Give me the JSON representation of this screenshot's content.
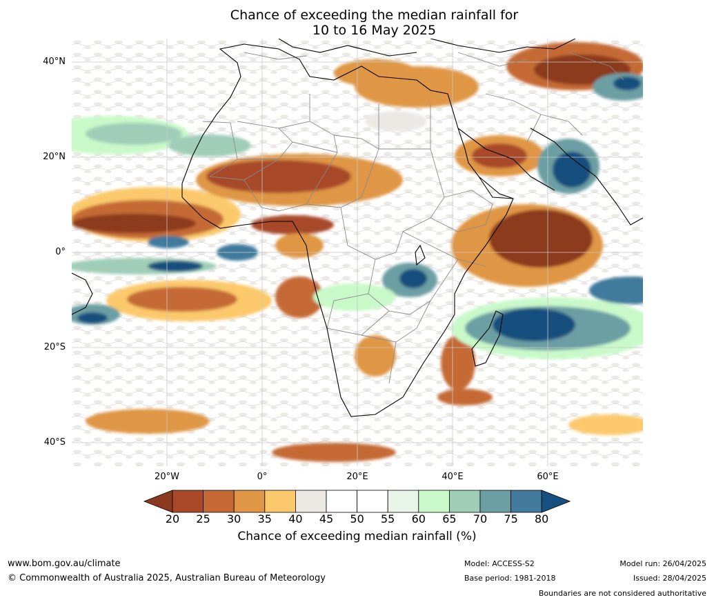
{
  "title": {
    "line1": "Chance of exceeding the median rainfall for",
    "line2": "10 to 16 May 2025"
  },
  "map": {
    "region": "Africa",
    "lat_ticks": [
      "40°N",
      "20°N",
      "0°",
      "20°S",
      "40°S"
    ],
    "lon_ticks": [
      "20°W",
      "0°",
      "20°E",
      "40°E",
      "60°E"
    ],
    "colors": {
      "c20": "#8c3a1e",
      "c25": "#a8492a",
      "c30": "#c56a35",
      "c35": "#df9645",
      "c40": "#fbc96c",
      "c45": "#ece9e4",
      "c55": "#e8f5e8",
      "c60": "#c9f9c9",
      "c65": "#9fcdb7",
      "c70": "#6c9fa3",
      "c75": "#417a9c",
      "c80": "#16507e",
      "land_border": "#000000",
      "country_border": "#808080",
      "grid": "#cccccc"
    }
  },
  "colorbar": {
    "labels": [
      "20",
      "25",
      "30",
      "35",
      "40",
      "45",
      "50",
      "55",
      "60",
      "65",
      "70",
      "75",
      "80"
    ],
    "colors": [
      "#a8492a",
      "#c56a35",
      "#df9645",
      "#fbc96c",
      "#ece9e4",
      "#ffffff",
      "#ffffff",
      "#e8f5e8",
      "#c9f9c9",
      "#9fcdb7",
      "#6c9fa3",
      "#417a9c"
    ],
    "low_arrow_color": "#8c3a1e",
    "high_arrow_color": "#16507e",
    "title": "Chance of exceeding median rainfall (%)"
  },
  "footer": {
    "website": "www.bom.gov.au/climate",
    "copyright": "© Commonwealth of Australia 2025, Australian Bureau of Meteorology",
    "model": "Model: ACCESS-S2",
    "base_period": "Base period: 1981-2018",
    "model_run": "Model run: 26/04/2025",
    "issued": "Issued: 28/04/2025",
    "disclaimer": "Boundaries are not considered authoritative"
  }
}
